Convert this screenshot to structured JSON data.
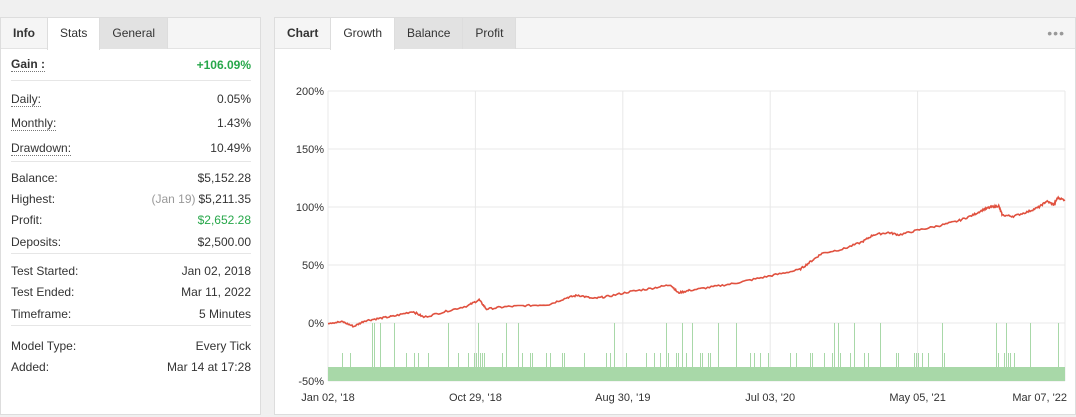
{
  "left_tabs": [
    {
      "label": "Info"
    },
    {
      "label": "Stats"
    },
    {
      "label": "General"
    }
  ],
  "stats": {
    "gain": {
      "label": "Gain :",
      "value": "+106.09%"
    },
    "daily": {
      "label": "Daily:",
      "value": "0.05%"
    },
    "monthly": {
      "label": "Monthly:",
      "value": "1.43%"
    },
    "drawdown": {
      "label": "Drawdown:",
      "value": "10.49%"
    },
    "balance": {
      "label": "Balance:",
      "value": "$5,152.28"
    },
    "highest": {
      "label": "Highest:",
      "note": "(Jan 19)",
      "value": "$5,211.35"
    },
    "profit": {
      "label": "Profit:",
      "value": "$2,652.28"
    },
    "deposits": {
      "label": "Deposits:",
      "value": "$2,500.00"
    },
    "test_started": {
      "label": "Test Started:",
      "value": "Jan 02, 2018"
    },
    "test_ended": {
      "label": "Test Ended:",
      "value": "Mar 11, 2022"
    },
    "timeframe": {
      "label": "Timeframe:",
      "value": "5 Minutes"
    },
    "model_type": {
      "label": "Model Type:",
      "value": "Every Tick"
    },
    "added": {
      "label": "Added:",
      "value": "Mar 14 at 17:28"
    }
  },
  "right_tabs": [
    {
      "label": "Chart"
    },
    {
      "label": "Growth"
    },
    {
      "label": "Balance"
    },
    {
      "label": "Profit"
    }
  ],
  "menu_icon": "more-dots-icon",
  "colors": {
    "growth_line": "#e0513f",
    "volume_bars": "#a8d8a8",
    "gain_green": "#27a74a"
  },
  "chart_data": {
    "type": "line",
    "title": "",
    "xlabel": "",
    "ylabel": "",
    "ylim": [
      -50,
      200
    ],
    "y_ticks": [
      "200%",
      "150%",
      "100%",
      "50%",
      "0%",
      "-50%"
    ],
    "y_tick_values": [
      200,
      150,
      100,
      50,
      0,
      -50
    ],
    "x_ticks": [
      "Jan 02, '18",
      "Oct 29, '18",
      "Aug 30, '19",
      "Jul 03, '20",
      "May 05, '21",
      "Mar 07, '22"
    ],
    "grid": true,
    "series": [
      {
        "points": [
          [
            0,
            0
          ],
          [
            0.02,
            1
          ],
          [
            0.035,
            -3
          ],
          [
            0.05,
            2
          ],
          [
            0.07,
            4
          ],
          [
            0.09,
            6
          ],
          [
            0.115,
            10
          ],
          [
            0.13,
            5
          ],
          [
            0.16,
            10
          ],
          [
            0.19,
            15
          ],
          [
            0.205,
            20
          ],
          [
            0.215,
            12
          ],
          [
            0.24,
            14
          ],
          [
            0.27,
            15
          ],
          [
            0.3,
            16
          ],
          [
            0.325,
            22
          ],
          [
            0.34,
            24
          ],
          [
            0.36,
            21
          ],
          [
            0.38,
            23
          ],
          [
            0.41,
            27
          ],
          [
            0.44,
            30
          ],
          [
            0.465,
            33
          ],
          [
            0.475,
            26
          ],
          [
            0.49,
            28
          ],
          [
            0.52,
            31
          ],
          [
            0.55,
            34
          ],
          [
            0.58,
            38
          ],
          [
            0.61,
            42
          ],
          [
            0.64,
            46
          ],
          [
            0.655,
            53
          ],
          [
            0.67,
            60
          ],
          [
            0.7,
            64
          ],
          [
            0.725,
            70
          ],
          [
            0.74,
            76
          ],
          [
            0.76,
            78
          ],
          [
            0.775,
            76
          ],
          [
            0.8,
            80
          ],
          [
            0.83,
            84
          ],
          [
            0.855,
            88
          ],
          [
            0.875,
            93
          ],
          [
            0.89,
            98
          ],
          [
            0.9,
            100
          ],
          [
            0.91,
            101
          ],
          [
            0.915,
            93
          ],
          [
            0.93,
            92
          ],
          [
            0.95,
            96
          ],
          [
            0.965,
            100
          ],
          [
            0.975,
            105
          ],
          [
            0.985,
            102
          ],
          [
            0.99,
            108
          ],
          [
            1.0,
            106
          ]
        ]
      }
    ]
  }
}
